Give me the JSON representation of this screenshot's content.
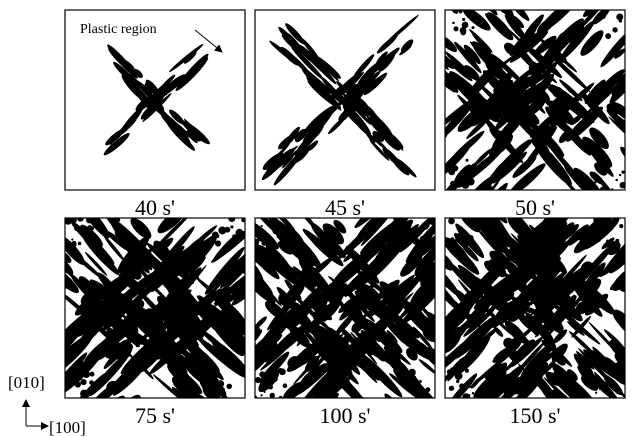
{
  "annotation": "Plastic region",
  "panels": [
    {
      "label": "40 s'"
    },
    {
      "label": "45 s'"
    },
    {
      "label": "50 s'"
    },
    {
      "label": "75 s'"
    },
    {
      "label": "100 s'"
    },
    {
      "label": "150 s'"
    }
  ],
  "axes": {
    "vertical": "[010]",
    "horizontal": "[100]"
  }
}
